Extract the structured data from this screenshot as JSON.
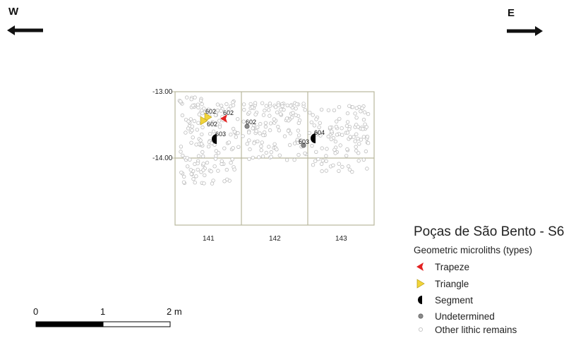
{
  "directions": {
    "west": "W",
    "east": "E"
  },
  "map": {
    "y_labels": [
      "-13.00",
      "-14.00"
    ],
    "x_labels": [
      "141",
      "142",
      "143"
    ],
    "grid_color": "#b9b89c",
    "finds": [
      {
        "type": "triangle",
        "label": "602"
      },
      {
        "type": "trapeze",
        "label": "602"
      },
      {
        "type": "triangle",
        "label": "602"
      },
      {
        "type": "segment",
        "label": "603"
      },
      {
        "type": "undetermined",
        "label": "602"
      },
      {
        "type": "undetermined",
        "label": "603"
      },
      {
        "type": "segment",
        "label": "604"
      }
    ]
  },
  "legend": {
    "title": "Poças de São Bento - S6",
    "subtitle": "Geometric microliths (types)",
    "items": [
      {
        "key": "trapeze",
        "label": "Trapeze",
        "color": "#e32222",
        "icon": "trapeze-icon"
      },
      {
        "key": "triangle",
        "label": "Triangle",
        "color": "#f2d43a",
        "icon": "triangle-icon"
      },
      {
        "key": "segment",
        "label": "Segment",
        "color": "#000000",
        "icon": "segment-icon"
      },
      {
        "key": "undetermined",
        "label": "Undetermined",
        "color": "#8a8a8a",
        "icon": "undetermined-icon"
      },
      {
        "key": "other",
        "label": "Other lithic remains",
        "color": "#bdbdbd",
        "icon": "other-lithic-icon"
      }
    ]
  },
  "scale_bar": {
    "labels": [
      "0",
      "1",
      "2 m"
    ]
  }
}
